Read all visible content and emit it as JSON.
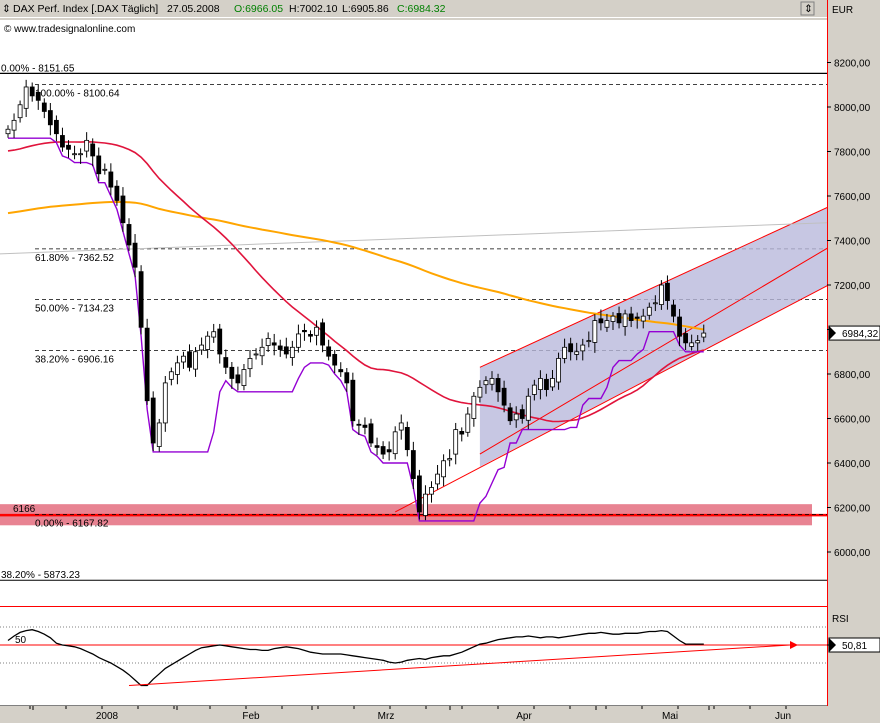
{
  "window": {
    "instrument": "DAX Perf. Index [.DAX  Täglich]",
    "date": "27.05.2008",
    "open": "O:6966.05",
    "high": "H:7002.10",
    "low": "L:6905.86",
    "close": "C:6984.32",
    "watermark": "© www.tradesignalonline.com",
    "currency": "EUR",
    "rsi_title": "RSI"
  },
  "colors": {
    "price_bg": "#ffffff",
    "up_candle": "#ffffff",
    "down_candle": "#000000",
    "sma_short": "#e0143c",
    "sma_long": "#ffa500",
    "envelope": "#9400d3",
    "channel": "#ff0000",
    "channel_fill": "#b9b9dc",
    "support_band": "#e05a6e",
    "rsi_line": "#000000"
  },
  "chart_data": [
    {
      "type": "candlestick",
      "title": "DAX Perf. Index",
      "ylabel": "EUR",
      "ylim": [
        5880,
        8320
      ],
      "yticks": [
        6000,
        6200,
        6400,
        6600,
        6800,
        7000,
        7200,
        7400,
        7600,
        7800,
        8000,
        8200
      ],
      "xticks": [
        "2008",
        "Feb",
        "Mrz",
        "Apr",
        "Mai",
        "Jun"
      ],
      "last_value": "6984,32",
      "fibonacci": [
        {
          "label": "0.00% - 8151.65",
          "value": 8151.65
        },
        {
          "label": "100.00% - 8100.64",
          "value": 8100.64
        },
        {
          "label": "61.80% - 7362.52",
          "value": 7362.52
        },
        {
          "label": "50.00% - 7134.23",
          "value": 7134.23
        },
        {
          "label": "38.20% - 6906.16",
          "value": 6906.16
        },
        {
          "label": "0.00% - 6167.82",
          "value": 6167.82
        },
        {
          "label": "38.20% - 5873.23",
          "value": 5873.23
        }
      ],
      "support": {
        "label": "6166",
        "value": 6166
      },
      "closes": [
        7900,
        7940,
        8010,
        8090,
        8050,
        8030,
        7980,
        7920,
        7880,
        7820,
        7810,
        7790,
        7790,
        7850,
        7780,
        7700,
        7720,
        7640,
        7580,
        7480,
        7380,
        7280,
        7010,
        6680,
        6490,
        6580,
        6760,
        6810,
        6850,
        6880,
        6830,
        6900,
        6930,
        6970,
        6990,
        6890,
        6830,
        6780,
        6760,
        6820,
        6870,
        6890,
        6920,
        6960,
        6930,
        6910,
        6890,
        6920,
        6980,
        6990,
        6970,
        7010,
        6930,
        6880,
        6840,
        6810,
        6760,
        6590,
        6570,
        6560,
        6490,
        6470,
        6440,
        6450,
        6540,
        6580,
        6460,
        6330,
        6180,
        6260,
        6290,
        6350,
        6410,
        6420,
        6550,
        6530,
        6620,
        6700,
        6740,
        6770,
        6780,
        6720,
        6660,
        6590,
        6620,
        6600,
        6700,
        6750,
        6780,
        6730,
        6780,
        6870,
        6920,
        6900,
        6900,
        6930,
        6950,
        7040,
        7030,
        7040,
        7060,
        7030,
        7070,
        7040,
        7050,
        7060,
        7100,
        7120,
        7200,
        7130,
        7060,
        6970,
        6940,
        6940,
        6950,
        6984
      ]
    },
    {
      "type": "line",
      "title": "RSI",
      "ylim": [
        0,
        100
      ],
      "yticks": [
        50
      ],
      "last_value": "50,81",
      "values": [
        55,
        60,
        64,
        66,
        67,
        65,
        62,
        58,
        52,
        50,
        49,
        48,
        46,
        43,
        40,
        36,
        33,
        30,
        26,
        22,
        17,
        11,
        5,
        5,
        12,
        18,
        24,
        28,
        32,
        36,
        40,
        44,
        47,
        48,
        49,
        50,
        49,
        48,
        47,
        46,
        45,
        45,
        44,
        44,
        46,
        47,
        48,
        47,
        46,
        44,
        42,
        41,
        40,
        40,
        40,
        40,
        39,
        38,
        37,
        36,
        35,
        34,
        33,
        31,
        30,
        31,
        33,
        34,
        35,
        34,
        36,
        37,
        38,
        38,
        40,
        42,
        45,
        48,
        51,
        52,
        54,
        56,
        57,
        58,
        59,
        59,
        60,
        59,
        58,
        59,
        59,
        58,
        59,
        60,
        61,
        62,
        63,
        63,
        64,
        63,
        62,
        62,
        63,
        63,
        63,
        64,
        65,
        65,
        66,
        65,
        60,
        55,
        51,
        51,
        51,
        51
      ]
    }
  ]
}
